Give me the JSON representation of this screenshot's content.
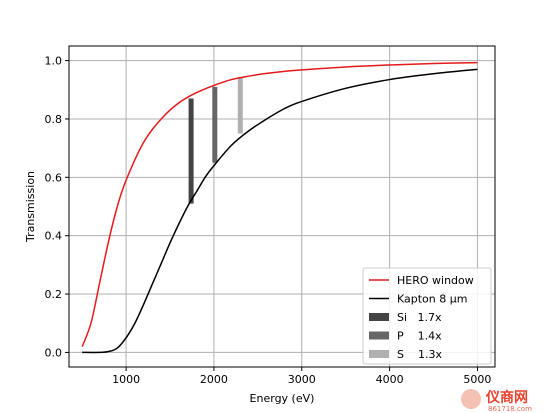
{
  "chart_data": {
    "type": "line",
    "xlabel": "Energy (eV)",
    "ylabel": "Transmission",
    "xlim": [
      350,
      5200
    ],
    "ylim": [
      -0.05,
      1.05
    ],
    "grid": true,
    "x_ticks": [
      1000,
      2000,
      3000,
      4000,
      5000
    ],
    "x_tick_labels": [
      "1000",
      "2000",
      "3000",
      "4000",
      "5000"
    ],
    "y_ticks": [
      0.0,
      0.2,
      0.4,
      0.6,
      0.8,
      1.0
    ],
    "y_tick_labels": [
      "0.0",
      "0.2",
      "0.4",
      "0.6",
      "0.8",
      "1.0"
    ],
    "series": [
      {
        "name": "HERO window",
        "color": "#e41a1c",
        "x": [
          500,
          600,
          700,
          800,
          900,
          1000,
          1200,
          1400,
          1600,
          1800,
          2000,
          2200,
          2400,
          2600,
          2800,
          3000,
          3500,
          4000,
          4500,
          5000
        ],
        "y": [
          0.02,
          0.1,
          0.24,
          0.38,
          0.5,
          0.59,
          0.72,
          0.8,
          0.855,
          0.89,
          0.915,
          0.935,
          0.947,
          0.956,
          0.963,
          0.968,
          0.978,
          0.985,
          0.99,
          0.993
        ]
      },
      {
        "name": "Kapton 8 μm",
        "color": "#000000",
        "x": [
          500,
          700,
          800,
          900,
          1000,
          1100,
          1200,
          1300,
          1400,
          1500,
          1600,
          1700,
          1800,
          1900,
          2000,
          2200,
          2400,
          2600,
          2800,
          3000,
          3500,
          4000,
          4500,
          5000
        ],
        "y": [
          0.0,
          0.0,
          0.003,
          0.015,
          0.05,
          0.1,
          0.165,
          0.235,
          0.305,
          0.375,
          0.44,
          0.5,
          0.55,
          0.6,
          0.64,
          0.71,
          0.76,
          0.8,
          0.835,
          0.86,
          0.905,
          0.935,
          0.955,
          0.97
        ]
      }
    ],
    "bars": [
      {
        "name": "Si   1.7x",
        "color": "#444444",
        "x": 1740,
        "y0": 0.51,
        "y1": 0.87
      },
      {
        "name": "P    1.4x",
        "color": "#666666",
        "x": 2010,
        "y0": 0.65,
        "y1": 0.91
      },
      {
        "name": "S    1.3x",
        "color": "#b0b0b0",
        "x": 2300,
        "y0": 0.75,
        "y1": 0.94
      }
    ],
    "legend": {
      "placement": "lower right",
      "entries": [
        "HERO window",
        "Kapton 8 μm",
        "Si   1.7x",
        "P    1.4x",
        "S    1.3x"
      ]
    }
  },
  "watermark": {
    "text": "仪商网",
    "subtext": "861718.com",
    "color": "#e8412e"
  }
}
